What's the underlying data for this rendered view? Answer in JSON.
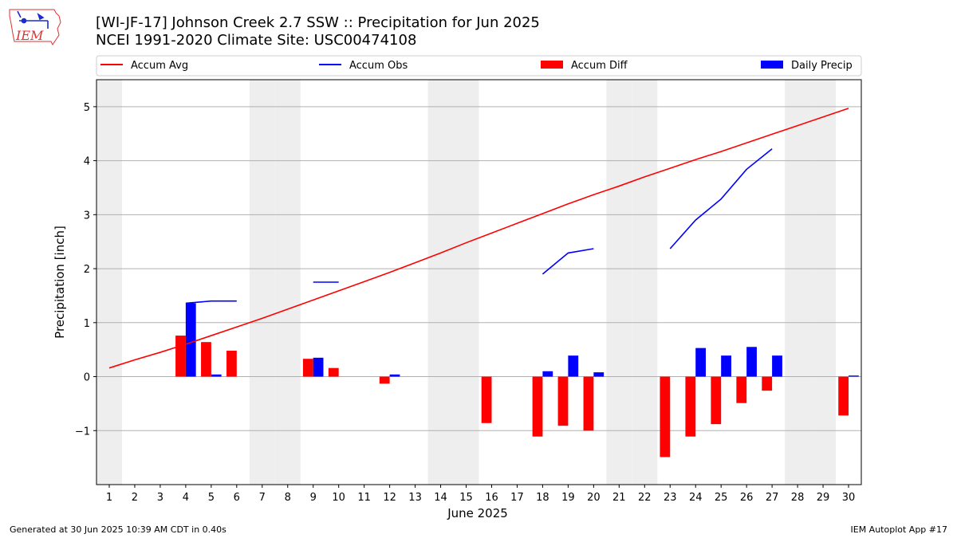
{
  "header": {
    "title_line1": "[WI-JF-17] Johnson Creek 2.7 SSW :: Precipitation for Jun 2025",
    "title_line2": "NCEI 1991-2020 Climate Site: USC00474108",
    "logo_text": "IEM"
  },
  "footer": {
    "left": "Generated at 30 Jun 2025 10:39 AM CDT in 0.40s",
    "right": "IEM Autoplot App #17"
  },
  "colors": {
    "accum_avg": "#ff0000",
    "accum_obs": "#0000ff",
    "accum_diff": "#ff0000",
    "daily_precip": "#0000ff",
    "weekend_shade": "#eeeeee",
    "grid": "#b0b0b0"
  },
  "chart_data": {
    "type": "bar",
    "xlabel": "June 2025",
    "ylabel": "Precipitation [inch]",
    "xlim": [
      0.5,
      30.5
    ],
    "ylim": [
      -2.0,
      5.5
    ],
    "yticks": [
      -1,
      0,
      1,
      2,
      3,
      4,
      5
    ],
    "ytick_labels": [
      "−1",
      "0",
      "1",
      "2",
      "3",
      "4",
      "5"
    ],
    "grid": "horizontal",
    "legend_position": "top, above plot",
    "weekend_days": [
      1,
      7,
      8,
      14,
      15,
      21,
      22,
      28,
      29
    ],
    "days": [
      1,
      2,
      3,
      4,
      5,
      6,
      7,
      8,
      9,
      10,
      11,
      12,
      13,
      14,
      15,
      16,
      17,
      18,
      19,
      20,
      21,
      22,
      23,
      24,
      25,
      26,
      27,
      28,
      29,
      30
    ],
    "legend": [
      "Accum Avg",
      "Accum Obs",
      "Accum Diff",
      "Daily Precip"
    ],
    "series": [
      {
        "name": "Accum Avg",
        "type": "line",
        "values": [
          0.16,
          0.31,
          0.45,
          0.6,
          0.76,
          0.92,
          1.08,
          1.25,
          1.42,
          1.59,
          1.76,
          1.93,
          2.11,
          2.29,
          2.48,
          2.66,
          2.84,
          3.02,
          3.2,
          3.37,
          3.53,
          3.7,
          3.86,
          4.02,
          4.17,
          4.33,
          4.49,
          4.65,
          4.81,
          4.97
        ]
      },
      {
        "name": "Accum Obs",
        "type": "line",
        "values": [
          null,
          null,
          null,
          1.36,
          1.4,
          1.4,
          null,
          null,
          1.75,
          1.75,
          null,
          null,
          null,
          null,
          null,
          null,
          null,
          1.9,
          2.29,
          2.37,
          null,
          null,
          2.37,
          2.9,
          3.29,
          3.84,
          4.22,
          null,
          null,
          null
        ]
      },
      {
        "name": "Accum Diff",
        "type": "bar",
        "values": [
          null,
          null,
          null,
          0.76,
          0.64,
          0.48,
          null,
          null,
          0.33,
          0.16,
          null,
          -0.13,
          null,
          null,
          null,
          -0.86,
          null,
          -1.11,
          -0.91,
          -1.0,
          null,
          null,
          -1.49,
          -1.11,
          -0.88,
          -0.49,
          -0.26,
          null,
          null,
          -0.72
        ]
      },
      {
        "name": "Daily Precip",
        "type": "bar",
        "values": [
          null,
          null,
          null,
          1.36,
          0.04,
          null,
          null,
          null,
          0.35,
          null,
          null,
          0.04,
          null,
          null,
          null,
          null,
          null,
          0.1,
          0.39,
          0.08,
          null,
          null,
          null,
          0.53,
          0.39,
          0.55,
          0.39,
          null,
          null,
          0.02
        ]
      }
    ]
  }
}
